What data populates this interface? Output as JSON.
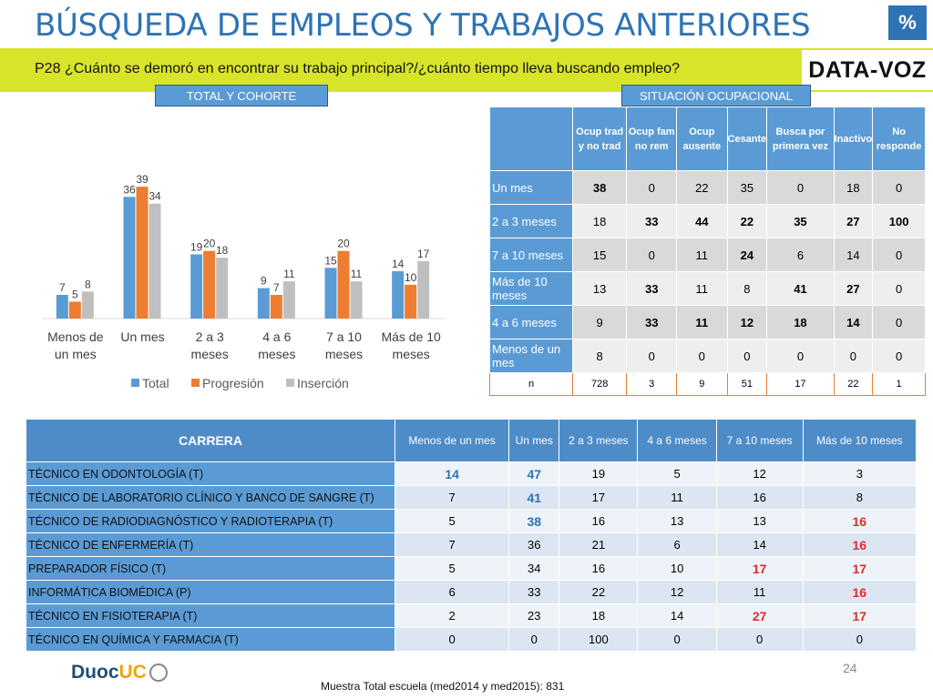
{
  "header": {
    "title": "BÚSQUEDA DE EMPLEOS Y TRABAJOS ANTERIORES",
    "percent_badge": "%",
    "question": "P28 ¿Cuánto se demoró en encontrar su trabajo principal?/¿cuánto tiempo lleva buscando empleo?",
    "logo_text": "DATA-VOZ"
  },
  "labels": {
    "total_cohorte": "TOTAL Y COHORTE",
    "situacion": "SITUACIÓN OCUPACIONAL"
  },
  "colors": {
    "total": "#5b9bd5",
    "progresion": "#ed7d31",
    "insercion": "#bfbfbf",
    "accent_band": "#d7e42a"
  },
  "chart_data": {
    "type": "bar",
    "categories": [
      "Menos de|un mes",
      "Un mes",
      "2 a 3|meses",
      "4 a 6|meses",
      "7 a 10|meses",
      "Más de 10|meses"
    ],
    "series": [
      {
        "name": "Total",
        "values": [
          7,
          36,
          19,
          9,
          15,
          14
        ]
      },
      {
        "name": "Progresión",
        "values": [
          5,
          39,
          20,
          7,
          20,
          10
        ]
      },
      {
        "name": "Inserción",
        "values": [
          8,
          34,
          18,
          11,
          11,
          17
        ]
      }
    ],
    "ylim": [
      0,
      42
    ],
    "grid": false,
    "legend": "bottom",
    "data_labels": true
  },
  "situacion_table": {
    "headers": [
      "Ocup trad y no trad",
      "Ocup fam no rem",
      "Ocup ausente",
      "Cesante",
      "Busca por primera vez",
      "Inactivo",
      "No responde"
    ],
    "rows": [
      {
        "label": "Un mes",
        "values": [
          "38",
          "0",
          "22",
          "35",
          "0",
          "18",
          "0"
        ],
        "bold": [
          0
        ]
      },
      {
        "label": "2 a 3 meses",
        "values": [
          "18",
          "33",
          "44",
          "22",
          "35",
          "27",
          "100"
        ],
        "bold": [
          1,
          2,
          3,
          4,
          5,
          6
        ]
      },
      {
        "label": "7 a 10 meses",
        "values": [
          "15",
          "0",
          "11",
          "24",
          "6",
          "14",
          "0"
        ],
        "bold": [
          3
        ]
      },
      {
        "label": "Más de 10 meses",
        "values": [
          "13",
          "33",
          "11",
          "8",
          "41",
          "27",
          "0"
        ],
        "bold": [
          1,
          4,
          5
        ]
      },
      {
        "label": "4 a 6 meses",
        "values": [
          "9",
          "33",
          "11",
          "12",
          "18",
          "14",
          "0"
        ],
        "bold": [
          1,
          2,
          3,
          4,
          5
        ]
      },
      {
        "label": "Menos de un mes",
        "values": [
          "8",
          "0",
          "0",
          "0",
          "0",
          "0",
          "0"
        ],
        "bold": []
      }
    ],
    "n_label": "n",
    "n_values": [
      "728",
      "3",
      "9",
      "51",
      "17",
      "22",
      "1"
    ]
  },
  "carrera_table": {
    "headers": [
      "CARRERA",
      "Menos de un mes",
      "Un mes",
      "2 a 3 meses",
      "4 a 6 meses",
      "7 a 10 meses",
      "Más de 10 meses"
    ],
    "rows": [
      {
        "name": "TÉCNICO EN ODONTOLOGÍA (T)",
        "values": [
          "14",
          "47",
          "19",
          "5",
          "12",
          "3"
        ],
        "blue": [
          0,
          1
        ],
        "red": []
      },
      {
        "name": "TÉCNICO DE LABORATORIO CLÍNICO Y BANCO DE SANGRE (T)",
        "values": [
          "7",
          "41",
          "17",
          "11",
          "16",
          "8"
        ],
        "blue": [
          1
        ],
        "red": []
      },
      {
        "name": "TÉCNICO DE RADIODIAGNÓSTICO Y RADIOTERAPIA (T)",
        "values": [
          "5",
          "38",
          "16",
          "13",
          "13",
          "16"
        ],
        "blue": [
          1
        ],
        "red": [
          5
        ]
      },
      {
        "name": "TÉCNICO DE ENFERMERÍA (T)",
        "values": [
          "7",
          "36",
          "21",
          "6",
          "14",
          "16"
        ],
        "blue": [],
        "red": [
          5
        ]
      },
      {
        "name": "PREPARADOR FÍSICO (T)",
        "values": [
          "5",
          "34",
          "16",
          "10",
          "17",
          "17"
        ],
        "blue": [],
        "red": [
          4,
          5
        ]
      },
      {
        "name": "INFORMÁTICA BIOMÉDICA (P)",
        "values": [
          "6",
          "33",
          "22",
          "12",
          "11",
          "16"
        ],
        "blue": [],
        "red": [
          5
        ]
      },
      {
        "name": "TÉCNICO EN FISIOTERAPIA (T)",
        "values": [
          "2",
          "23",
          "18",
          "14",
          "27",
          "17"
        ],
        "blue": [],
        "red": [
          4,
          5
        ]
      },
      {
        "name": "TÉCNICO EN QUÍMICA Y FARMACIA (T)",
        "values": [
          "0",
          "0",
          "100",
          "0",
          "0",
          "0"
        ],
        "blue": [],
        "red": []
      }
    ]
  },
  "footer": {
    "page_number": "24",
    "note": "Muestra Total escuela (med2014 y med2015): 831",
    "brand_part1": "Duoc",
    "brand_part2": "UC"
  }
}
